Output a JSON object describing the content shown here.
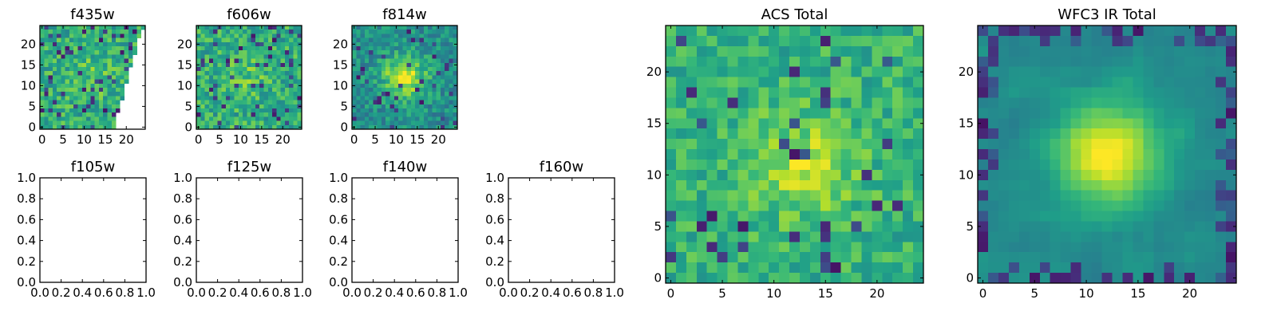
{
  "chart_data": [
    {
      "type": "heatmap",
      "title": "f435w",
      "colormap": "viridis",
      "xlim": [
        -0.5,
        24.5
      ],
      "ylim": [
        -0.5,
        24.5
      ],
      "xticks": [
        0,
        5,
        10,
        15,
        20
      ],
      "yticks": [
        0,
        5,
        10,
        15,
        20
      ],
      "texture": "noisy",
      "peak": [
        12,
        12
      ],
      "seed": 3
    },
    {
      "type": "heatmap",
      "title": "f606w",
      "colormap": "viridis",
      "xlim": [
        -0.5,
        24.5
      ],
      "ylim": [
        -0.5,
        24.5
      ],
      "xticks": [
        0,
        5,
        10,
        15,
        20
      ],
      "yticks": [
        0,
        5,
        10,
        15,
        20
      ],
      "texture": "noisy",
      "peak": [
        12,
        12
      ],
      "seed": 7
    },
    {
      "type": "heatmap",
      "title": "f814w",
      "colormap": "viridis",
      "xlim": [
        -0.5,
        24.5
      ],
      "ylim": [
        -0.5,
        24.5
      ],
      "xticks": [
        0,
        5,
        10,
        15,
        20
      ],
      "yticks": [
        0,
        5,
        10,
        15,
        20
      ],
      "texture": "peaked",
      "peak": [
        12,
        12
      ],
      "seed": 11
    },
    {
      "type": "empty",
      "title": "f105w",
      "xlim": [
        0,
        1
      ],
      "ylim": [
        0,
        1
      ],
      "xticks": [
        "0.0",
        "0.2",
        "0.4",
        "0.6",
        "0.8",
        "1.0"
      ],
      "yticks": [
        "0.0",
        "0.2",
        "0.4",
        "0.6",
        "0.8",
        "1.0"
      ]
    },
    {
      "type": "empty",
      "title": "f125w",
      "xlim": [
        0,
        1
      ],
      "ylim": [
        0,
        1
      ],
      "xticks": [
        "0.0",
        "0.2",
        "0.4",
        "0.6",
        "0.8",
        "1.0"
      ],
      "yticks": [
        "0.0",
        "0.2",
        "0.4",
        "0.6",
        "0.8",
        "1.0"
      ]
    },
    {
      "type": "empty",
      "title": "f140w",
      "xlim": [
        0,
        1
      ],
      "ylim": [
        0,
        1
      ],
      "xticks": [
        "0.0",
        "0.2",
        "0.4",
        "0.6",
        "0.8",
        "1.0"
      ],
      "yticks": [
        "0.0",
        "0.2",
        "0.4",
        "0.6",
        "0.8",
        "1.0"
      ]
    },
    {
      "type": "empty",
      "title": "f160w",
      "xlim": [
        0,
        1
      ],
      "ylim": [
        0,
        1
      ],
      "xticks": [
        "0.0",
        "0.2",
        "0.4",
        "0.6",
        "0.8",
        "1.0"
      ],
      "yticks": [
        "0.0",
        "0.2",
        "0.4",
        "0.6",
        "0.8",
        "1.0"
      ]
    },
    {
      "type": "heatmap",
      "title": "ACS Total",
      "colormap": "viridis",
      "xlim": [
        -0.5,
        24.5
      ],
      "ylim": [
        -0.5,
        24.5
      ],
      "xticks": [
        0,
        5,
        10,
        15,
        20
      ],
      "yticks": [
        0,
        5,
        10,
        15,
        20
      ],
      "texture": "mixed",
      "peak": [
        13,
        11
      ],
      "seed": 19
    },
    {
      "type": "heatmap",
      "title": "WFC3 IR Total",
      "colormap": "viridis",
      "xlim": [
        -0.5,
        24.5
      ],
      "ylim": [
        -0.5,
        24.5
      ],
      "xticks": [
        0,
        5,
        10,
        15,
        20
      ],
      "yticks": [
        0,
        5,
        10,
        15,
        20
      ],
      "texture": "smooth",
      "peak": [
        12,
        12
      ],
      "seed": 23
    }
  ]
}
